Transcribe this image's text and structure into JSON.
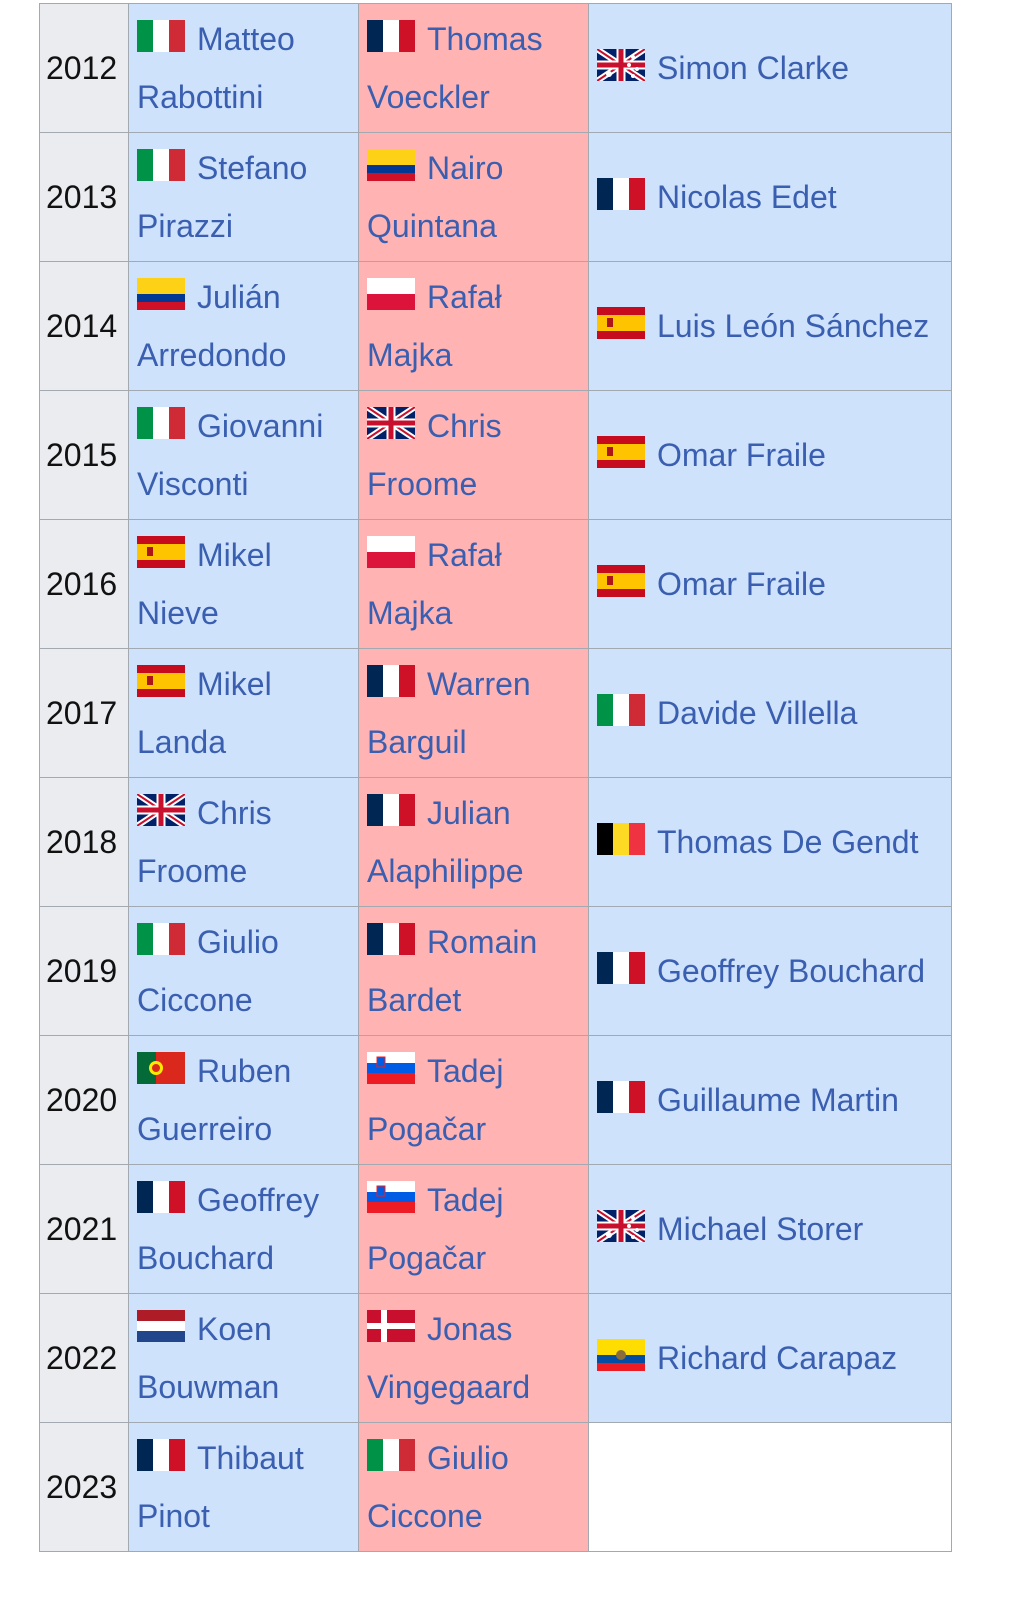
{
  "colors": {
    "year_bg": "#eaecf0",
    "col2_bg": "#cfe2fb",
    "col3_bg": "#ffb3b3",
    "col4_bg": "#cfe2fb",
    "link": "#3a5fb0"
  },
  "rows": [
    {
      "year": "2012",
      "c2": {
        "flag": "italy",
        "name": "Matteo Rabottini"
      },
      "c3": {
        "flag": "france",
        "name": "Thomas Voeckler"
      },
      "c4": {
        "flag": "australia",
        "name": "Simon Clarke"
      }
    },
    {
      "year": "2013",
      "c2": {
        "flag": "italy",
        "name": "Stefano Pirazzi"
      },
      "c3": {
        "flag": "colombia",
        "name": "Nairo Quintana"
      },
      "c4": {
        "flag": "france",
        "name": "Nicolas Edet"
      }
    },
    {
      "year": "2014",
      "c2": {
        "flag": "colombia",
        "name": "Julián Arredondo"
      },
      "c3": {
        "flag": "poland",
        "name": "Rafał Majka"
      },
      "c4": {
        "flag": "spain",
        "name": "Luis León Sánchez"
      }
    },
    {
      "year": "2015",
      "c2": {
        "flag": "italy",
        "name": "Giovanni Visconti"
      },
      "c3": {
        "flag": "uk",
        "name": "Chris Froome"
      },
      "c4": {
        "flag": "spain",
        "name": "Omar Fraile"
      }
    },
    {
      "year": "2016",
      "c2": {
        "flag": "spain",
        "name": "Mikel Nieve"
      },
      "c3": {
        "flag": "poland",
        "name": "Rafał Majka"
      },
      "c4": {
        "flag": "spain",
        "name": "Omar Fraile"
      }
    },
    {
      "year": "2017",
      "c2": {
        "flag": "spain",
        "name": "Mikel Landa"
      },
      "c3": {
        "flag": "france",
        "name": "Warren Barguil"
      },
      "c4": {
        "flag": "italy",
        "name": "Davide Villella"
      }
    },
    {
      "year": "2018",
      "c2": {
        "flag": "uk",
        "name": "Chris Froome"
      },
      "c3": {
        "flag": "france",
        "name": "Julian Alaphilippe"
      },
      "c4": {
        "flag": "belgium",
        "name": "Thomas De Gendt"
      }
    },
    {
      "year": "2019",
      "c2": {
        "flag": "italy",
        "name": "Giulio Ciccone"
      },
      "c3": {
        "flag": "france",
        "name": "Romain Bardet"
      },
      "c4": {
        "flag": "france",
        "name": "Geoffrey Bouchard"
      }
    },
    {
      "year": "2020",
      "c2": {
        "flag": "portugal",
        "name": "Ruben Guerreiro"
      },
      "c3": {
        "flag": "slovenia",
        "name": "Tadej Pogačar"
      },
      "c4": {
        "flag": "france",
        "name": "Guillaume Martin"
      }
    },
    {
      "year": "2021",
      "c2": {
        "flag": "france",
        "name": "Geoffrey Bouchard"
      },
      "c3": {
        "flag": "slovenia",
        "name": "Tadej Pogačar"
      },
      "c4": {
        "flag": "australia",
        "name": "Michael Storer"
      }
    },
    {
      "year": "2022",
      "c2": {
        "flag": "netherlands",
        "name": "Koen Bouwman"
      },
      "c3": {
        "flag": "denmark",
        "name": "Jonas Vingegaard"
      },
      "c4": {
        "flag": "ecuador",
        "name": "Richard Carapaz"
      }
    },
    {
      "year": "2023",
      "c2": {
        "flag": "france",
        "name": "Thibaut Pinot"
      },
      "c3": {
        "flag": "italy",
        "name": "Giulio Ciccone"
      },
      "c4": null
    }
  ]
}
